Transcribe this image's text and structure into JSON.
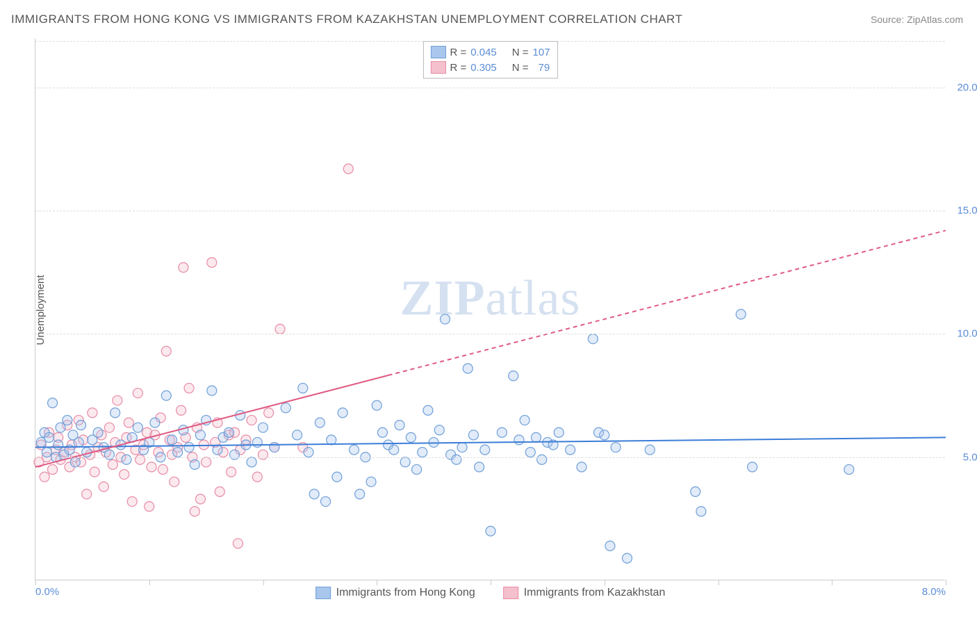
{
  "title": "IMMIGRANTS FROM HONG KONG VS IMMIGRANTS FROM KAZAKHSTAN UNEMPLOYMENT CORRELATION CHART",
  "source": "Source: ZipAtlas.com",
  "ylabel": "Unemployment",
  "watermark_a": "ZIP",
  "watermark_b": "atlas",
  "chart": {
    "type": "scatter",
    "background_color": "#ffffff",
    "grid_color": "#dddddd",
    "axis_color": "#cccccc",
    "tick_label_color": "#5b8dd6",
    "xlim": [
      0,
      8
    ],
    "ylim": [
      0,
      22
    ],
    "y_ticks": [
      5,
      10,
      15,
      20
    ],
    "y_tick_labels": [
      "5.0%",
      "10.0%",
      "15.0%",
      "20.0%"
    ],
    "x_tick_positions": [
      0,
      1,
      2,
      3,
      4,
      5,
      6,
      7,
      8
    ],
    "x_left_label": "0.0%",
    "x_right_label": "8.0%",
    "marker_radius": 7,
    "marker_stroke_width": 1.2,
    "marker_fill_opacity": 0.35,
    "series": [
      {
        "name": "Immigrants from Hong Kong",
        "color_fill": "#a9c6ed",
        "color_stroke": "#6f9fd8",
        "r_value": "0.045",
        "n_value": "107",
        "trend": {
          "x1": 0,
          "y1": 5.4,
          "x2": 8,
          "y2": 5.8,
          "solid_until_x": 8,
          "color": "#3b7dd8",
          "width": 2
        },
        "points": [
          [
            0.05,
            5.6
          ],
          [
            0.08,
            6.0
          ],
          [
            0.1,
            5.2
          ],
          [
            0.12,
            5.8
          ],
          [
            0.15,
            7.2
          ],
          [
            0.18,
            5.0
          ],
          [
            0.2,
            5.5
          ],
          [
            0.22,
            6.2
          ],
          [
            0.25,
            5.1
          ],
          [
            0.28,
            6.5
          ],
          [
            0.3,
            5.3
          ],
          [
            0.33,
            5.9
          ],
          [
            0.35,
            4.8
          ],
          [
            0.38,
            5.6
          ],
          [
            0.4,
            6.3
          ],
          [
            0.45,
            5.2
          ],
          [
            0.5,
            5.7
          ],
          [
            0.55,
            6.0
          ],
          [
            0.6,
            5.4
          ],
          [
            0.65,
            5.1
          ],
          [
            0.7,
            6.8
          ],
          [
            0.75,
            5.5
          ],
          [
            0.8,
            4.9
          ],
          [
            0.85,
            5.8
          ],
          [
            0.9,
            6.2
          ],
          [
            0.95,
            5.3
          ],
          [
            1.0,
            5.6
          ],
          [
            1.05,
            6.4
          ],
          [
            1.1,
            5.0
          ],
          [
            1.15,
            7.5
          ],
          [
            1.2,
            5.7
          ],
          [
            1.25,
            5.2
          ],
          [
            1.3,
            6.1
          ],
          [
            1.35,
            5.4
          ],
          [
            1.4,
            4.7
          ],
          [
            1.45,
            5.9
          ],
          [
            1.5,
            6.5
          ],
          [
            1.55,
            7.7
          ],
          [
            1.6,
            5.3
          ],
          [
            1.65,
            5.8
          ],
          [
            1.7,
            6.0
          ],
          [
            1.75,
            5.1
          ],
          [
            1.8,
            6.7
          ],
          [
            1.85,
            5.5
          ],
          [
            1.9,
            4.8
          ],
          [
            1.95,
            5.6
          ],
          [
            2.0,
            6.2
          ],
          [
            2.1,
            5.4
          ],
          [
            2.2,
            7.0
          ],
          [
            2.3,
            5.9
          ],
          [
            2.35,
            7.8
          ],
          [
            2.4,
            5.2
          ],
          [
            2.45,
            3.5
          ],
          [
            2.5,
            6.4
          ],
          [
            2.55,
            3.2
          ],
          [
            2.6,
            5.7
          ],
          [
            2.65,
            4.2
          ],
          [
            2.7,
            6.8
          ],
          [
            2.8,
            5.3
          ],
          [
            2.85,
            3.5
          ],
          [
            2.9,
            5.0
          ],
          [
            2.95,
            4.0
          ],
          [
            3.0,
            7.1
          ],
          [
            3.05,
            6.0
          ],
          [
            3.1,
            5.5
          ],
          [
            3.15,
            5.3
          ],
          [
            3.2,
            6.3
          ],
          [
            3.25,
            4.8
          ],
          [
            3.3,
            5.8
          ],
          [
            3.35,
            4.5
          ],
          [
            3.4,
            5.2
          ],
          [
            3.45,
            6.9
          ],
          [
            3.5,
            5.6
          ],
          [
            3.55,
            6.1
          ],
          [
            3.6,
            10.6
          ],
          [
            3.65,
            5.1
          ],
          [
            3.7,
            4.9
          ],
          [
            3.75,
            5.4
          ],
          [
            3.8,
            8.6
          ],
          [
            3.85,
            5.9
          ],
          [
            3.9,
            4.6
          ],
          [
            3.95,
            5.3
          ],
          [
            4.0,
            2.0
          ],
          [
            4.1,
            6.0
          ],
          [
            4.2,
            8.3
          ],
          [
            4.25,
            5.7
          ],
          [
            4.3,
            6.5
          ],
          [
            4.35,
            5.2
          ],
          [
            4.4,
            5.8
          ],
          [
            4.45,
            4.9
          ],
          [
            4.5,
            5.6
          ],
          [
            4.55,
            5.5
          ],
          [
            4.6,
            6.0
          ],
          [
            4.7,
            5.3
          ],
          [
            4.8,
            4.6
          ],
          [
            4.9,
            9.8
          ],
          [
            4.95,
            6.0
          ],
          [
            5.0,
            5.9
          ],
          [
            5.05,
            1.4
          ],
          [
            5.1,
            5.4
          ],
          [
            5.2,
            0.9
          ],
          [
            5.4,
            5.3
          ],
          [
            5.8,
            3.6
          ],
          [
            5.85,
            2.8
          ],
          [
            6.2,
            10.8
          ],
          [
            6.3,
            4.6
          ],
          [
            7.15,
            4.5
          ]
        ]
      },
      {
        "name": "Immigrants from Kazakhstan",
        "color_fill": "#f4c0cd",
        "color_stroke": "#e88ba5",
        "r_value": "0.305",
        "n_value": "79",
        "trend": {
          "x1": 0,
          "y1": 4.6,
          "x2": 8,
          "y2": 14.2,
          "solid_until_x": 3.1,
          "color": "#e05a82",
          "width": 2
        },
        "points": [
          [
            0.03,
            4.8
          ],
          [
            0.05,
            5.5
          ],
          [
            0.08,
            4.2
          ],
          [
            0.1,
            5.0
          ],
          [
            0.12,
            6.0
          ],
          [
            0.15,
            4.5
          ],
          [
            0.18,
            5.3
          ],
          [
            0.2,
            5.8
          ],
          [
            0.22,
            4.9
          ],
          [
            0.25,
            5.2
          ],
          [
            0.28,
            6.3
          ],
          [
            0.3,
            4.6
          ],
          [
            0.32,
            5.5
          ],
          [
            0.35,
            5.0
          ],
          [
            0.38,
            6.5
          ],
          [
            0.4,
            4.8
          ],
          [
            0.42,
            5.7
          ],
          [
            0.45,
            3.5
          ],
          [
            0.48,
            5.1
          ],
          [
            0.5,
            6.8
          ],
          [
            0.52,
            4.4
          ],
          [
            0.55,
            5.4
          ],
          [
            0.58,
            5.9
          ],
          [
            0.6,
            3.8
          ],
          [
            0.62,
            5.2
          ],
          [
            0.65,
            6.2
          ],
          [
            0.68,
            4.7
          ],
          [
            0.7,
            5.6
          ],
          [
            0.72,
            7.3
          ],
          [
            0.75,
            5.0
          ],
          [
            0.78,
            4.3
          ],
          [
            0.8,
            5.8
          ],
          [
            0.82,
            6.4
          ],
          [
            0.85,
            3.2
          ],
          [
            0.88,
            5.3
          ],
          [
            0.9,
            7.6
          ],
          [
            0.92,
            4.9
          ],
          [
            0.95,
            5.5
          ],
          [
            0.98,
            6.0
          ],
          [
            1.0,
            3.0
          ],
          [
            1.02,
            4.6
          ],
          [
            1.05,
            5.9
          ],
          [
            1.08,
            5.2
          ],
          [
            1.1,
            6.6
          ],
          [
            1.12,
            4.5
          ],
          [
            1.15,
            9.3
          ],
          [
            1.18,
            5.7
          ],
          [
            1.2,
            5.1
          ],
          [
            1.22,
            4.0
          ],
          [
            1.25,
            5.4
          ],
          [
            1.28,
            6.9
          ],
          [
            1.3,
            12.7
          ],
          [
            1.32,
            5.8
          ],
          [
            1.35,
            7.8
          ],
          [
            1.38,
            5.0
          ],
          [
            1.4,
            2.8
          ],
          [
            1.42,
            6.2
          ],
          [
            1.45,
            3.3
          ],
          [
            1.48,
            5.5
          ],
          [
            1.5,
            4.8
          ],
          [
            1.55,
            12.9
          ],
          [
            1.58,
            5.6
          ],
          [
            1.6,
            6.4
          ],
          [
            1.62,
            3.6
          ],
          [
            1.65,
            5.2
          ],
          [
            1.7,
            5.9
          ],
          [
            1.72,
            4.4
          ],
          [
            1.75,
            6.0
          ],
          [
            1.78,
            1.5
          ],
          [
            1.8,
            5.3
          ],
          [
            1.85,
            5.7
          ],
          [
            1.9,
            6.5
          ],
          [
            1.95,
            4.2
          ],
          [
            2.0,
            5.1
          ],
          [
            2.05,
            6.8
          ],
          [
            2.1,
            5.4
          ],
          [
            2.15,
            10.2
          ],
          [
            2.35,
            5.4
          ],
          [
            2.75,
            16.7
          ]
        ]
      }
    ]
  },
  "legend_top": {
    "r_label": "R =",
    "n_label": "N ="
  },
  "legend_bottom": [
    "Immigrants from Hong Kong",
    "Immigrants from Kazakhstan"
  ]
}
